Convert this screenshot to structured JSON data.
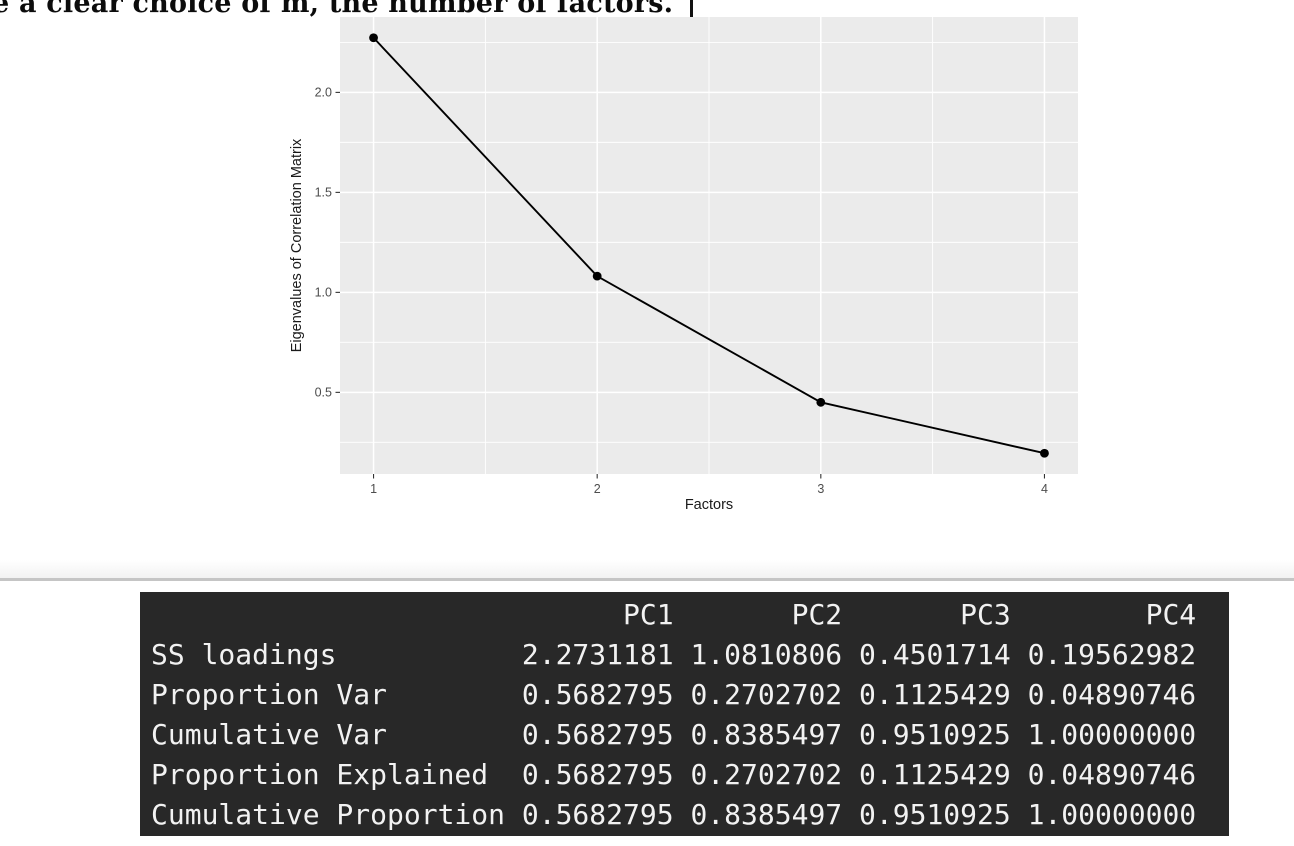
{
  "document": {
    "visible_text_fragment": "e a clear choice of m, the number of factors.",
    "caret": "text-caret"
  },
  "colors": {
    "panel_bg": "#EBEBEB",
    "grid": "#FFFFFF",
    "tick_label": "#4D4D4D",
    "axis_title": "#1A1A1A",
    "series": "#000000",
    "divider": "#C5C5C5",
    "console_bg": "#282828",
    "console_text": "#F2F2F2"
  },
  "chart_data": [
    {
      "type": "line",
      "title": "",
      "x": [
        1,
        2,
        3,
        4
      ],
      "y": [
        2.2731181,
        1.0810806,
        0.4501714,
        0.19562982
      ],
      "xlabel": "Factors",
      "ylabel": "Eigenvalues of Correlation Matrix",
      "x_ticks": [
        1,
        2,
        3,
        4
      ],
      "x_tick_labels": [
        "1",
        "2",
        "3",
        "4"
      ],
      "y_ticks": [
        0.5,
        1.0,
        1.5,
        2.0
      ],
      "y_tick_labels": [
        "0.5",
        "1.0",
        "1.5",
        "2.0"
      ],
      "xlim": [
        0.85,
        4.15
      ],
      "ylim": [
        0.0917,
        2.377
      ],
      "grid": true,
      "legend": "none",
      "style": "ggplot2-theme-grey",
      "marker": "point"
    },
    {
      "type": "table",
      "columns": [
        "",
        "PC1",
        "PC2",
        "PC3",
        "PC4"
      ],
      "rows": [
        [
          "SS loadings",
          "2.2731181",
          "1.0810806",
          "0.4501714",
          "0.19562982"
        ],
        [
          "Proportion Var",
          "0.5682795",
          "0.2702702",
          "0.1125429",
          "0.04890746"
        ],
        [
          "Cumulative Var",
          "0.5682795",
          "0.8385497",
          "0.9510925",
          "1.00000000"
        ],
        [
          "Proportion Explained",
          "0.5682795",
          "0.2702702",
          "0.1125429",
          "0.04890746"
        ],
        [
          "Cumulative Proportion",
          "0.5682795",
          "0.8385497",
          "0.9510925",
          "1.00000000"
        ]
      ]
    }
  ],
  "console": {
    "header_cols": [
      "PC1",
      "PC2",
      "PC3",
      "PC4"
    ],
    "rows": [
      {
        "label": "SS loadings",
        "values": [
          "2.2731181",
          "1.0810806",
          "0.4501714",
          "0.19562982"
        ]
      },
      {
        "label": "Proportion Var",
        "values": [
          "0.5682795",
          "0.2702702",
          "0.1125429",
          "0.04890746"
        ]
      },
      {
        "label": "Cumulative Var",
        "values": [
          "0.5682795",
          "0.8385497",
          "0.9510925",
          "1.00000000"
        ]
      },
      {
        "label": "Proportion Explained",
        "values": [
          "0.5682795",
          "0.2702702",
          "0.1125429",
          "0.04890746"
        ]
      },
      {
        "label": "Cumulative Proportion",
        "values": [
          "0.5682795",
          "0.8385497",
          "0.9510925",
          "1.00000000"
        ]
      }
    ],
    "label_width": 21,
    "value_width": 9,
    "last_value_width": 10
  }
}
